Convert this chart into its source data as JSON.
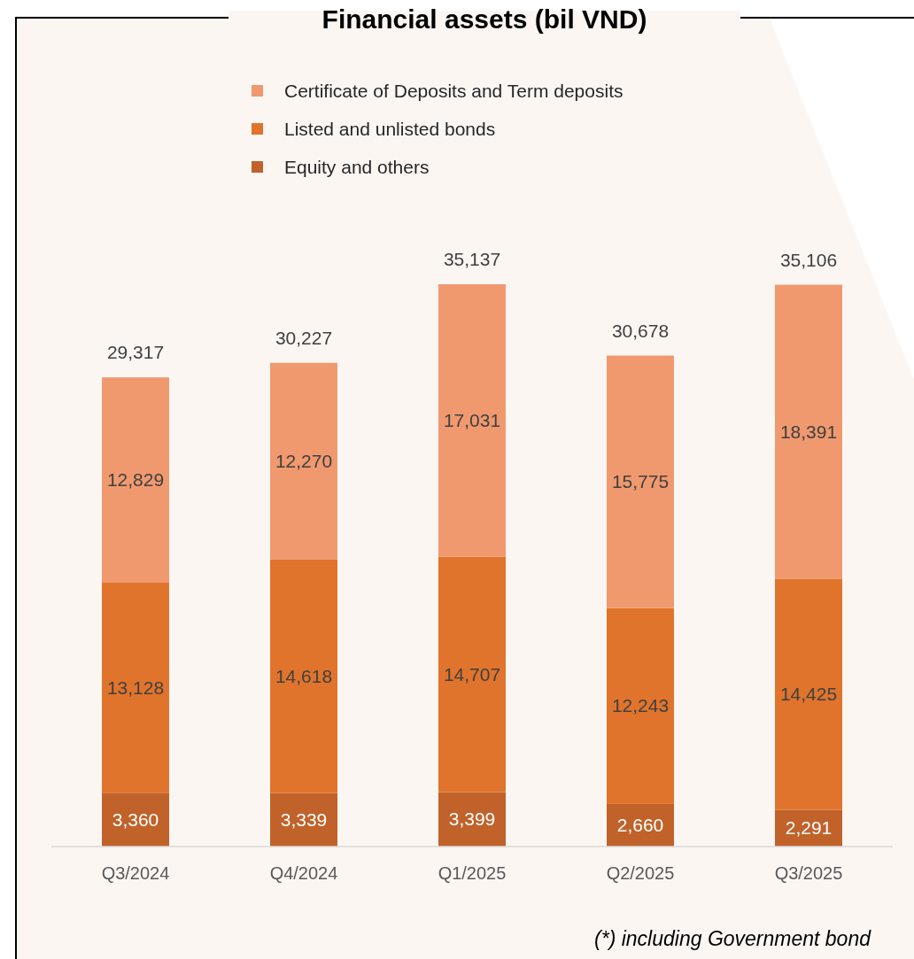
{
  "chart_data": {
    "type": "bar",
    "title": "Financial assets (bil VND)",
    "stacked": true,
    "legend": "top",
    "categories": [
      "Q3/2024",
      "Q4/2024",
      "Q1/2025",
      "Q2/2025",
      "Q3/2025"
    ],
    "series": [
      {
        "name": "Equity and others",
        "color": "#c0622a",
        "values": [
          3360,
          3339,
          3399,
          2660,
          2291
        ],
        "value_labels": [
          "3,360",
          "3,339",
          "3,399",
          "2,660",
          "2,291"
        ]
      },
      {
        "name": "Listed and unlisted bonds",
        "color": "#e0742c",
        "values": [
          13128,
          14618,
          14707,
          12243,
          14425
        ],
        "value_labels": [
          "13,128",
          "14,618",
          "14,707",
          "12,243",
          "14,425"
        ]
      },
      {
        "name": "Certificate of Deposits and Term deposits",
        "color": "#f0996f",
        "values": [
          12829,
          12270,
          17031,
          15775,
          18391
        ],
        "value_labels": [
          "12,829",
          "12,270",
          "17,031",
          "15,775",
          "18,391"
        ]
      }
    ],
    "totals": [
      "29,317",
      "30,227",
      "35,137",
      "30,678",
      "35,106"
    ],
    "annotations": [
      "(*) including Government bond"
    ]
  }
}
